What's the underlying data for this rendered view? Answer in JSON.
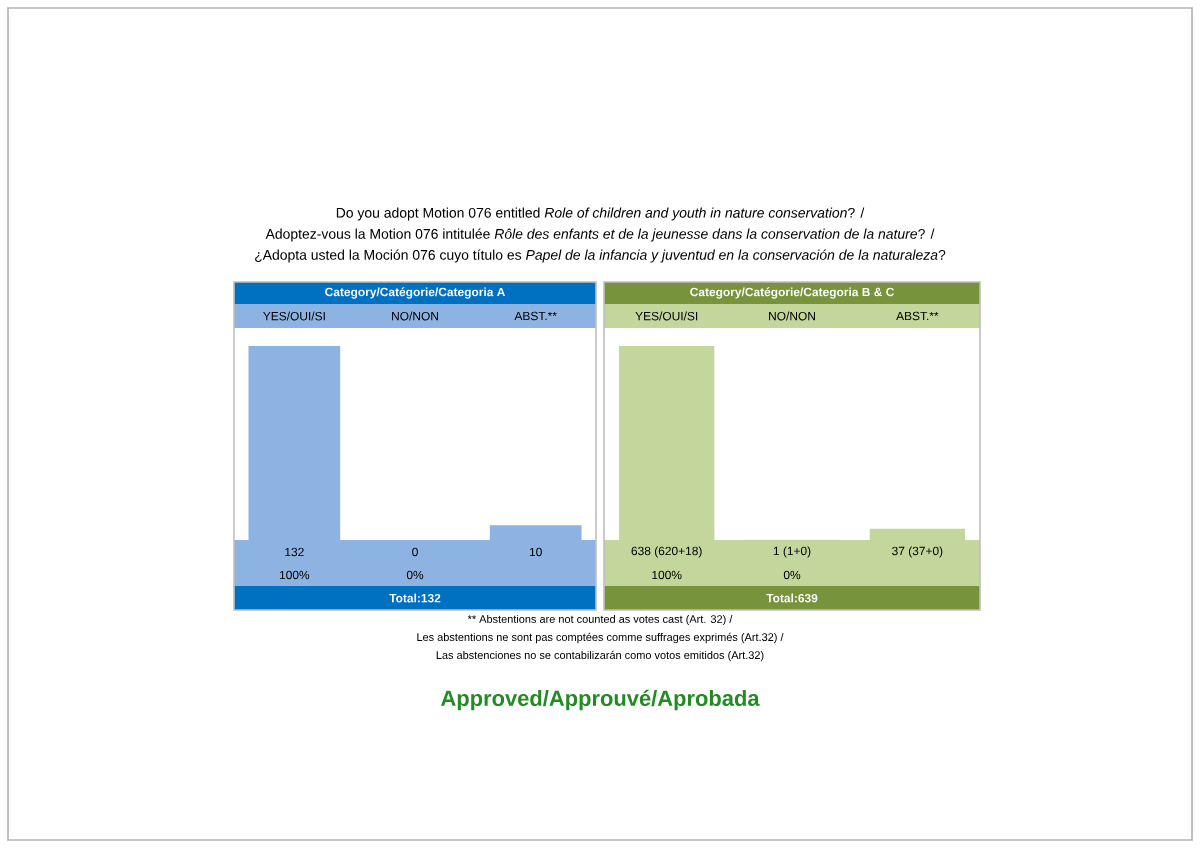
{
  "chart_data": [
    {
      "type": "bar",
      "title": "Category/Catégorie/Categoria A",
      "categories": [
        "YES/OUI/SI",
        "NO/NON",
        "ABST.**"
      ],
      "values": [
        132,
        0,
        10
      ],
      "color": "#8db3e2",
      "data_labels": true,
      "annotations": [
        "100%",
        "0%",
        "Total:132"
      ]
    },
    {
      "type": "bar",
      "title": "Category/Catégorie/Categoria B & C",
      "categories": [
        "YES/OUI/SI",
        "NO/NON",
        "ABST.**"
      ],
      "values": [
        638,
        1,
        37
      ],
      "color": "#c3d69b",
      "value_labels": [
        "638 (620+18)",
        "1 (1+0)",
        "37 (37+0)"
      ],
      "annotations": [
        "100%",
        "0%",
        "Total:639"
      ]
    },
    {
      "type": "other",
      "title": "Approved/Approuvé/Aprobada",
      "annotations": [
        "Do you adopt Motion 076 entitled *Role of children and youth in nature conservation*? /",
        "Adoptez-vous la Motion 076 intitulée *Rôle des enfants et de la jeunesse dans la conservation de la nature*? /",
        "¿Adopta usted la Moción 076 cuyo título es *Papel de la infancia y juventud en la conservación de la naturaleza*?",
        "** Abstentions are not counted as votes cast (Art. 32) /",
        "Les abstentions ne sont pas comptées comme suffrages exprimés (Art.32) /",
        "Las abstenciones no se contabilizarán como votos emitidos (Art.32)"
      ]
    }
  ]
}
